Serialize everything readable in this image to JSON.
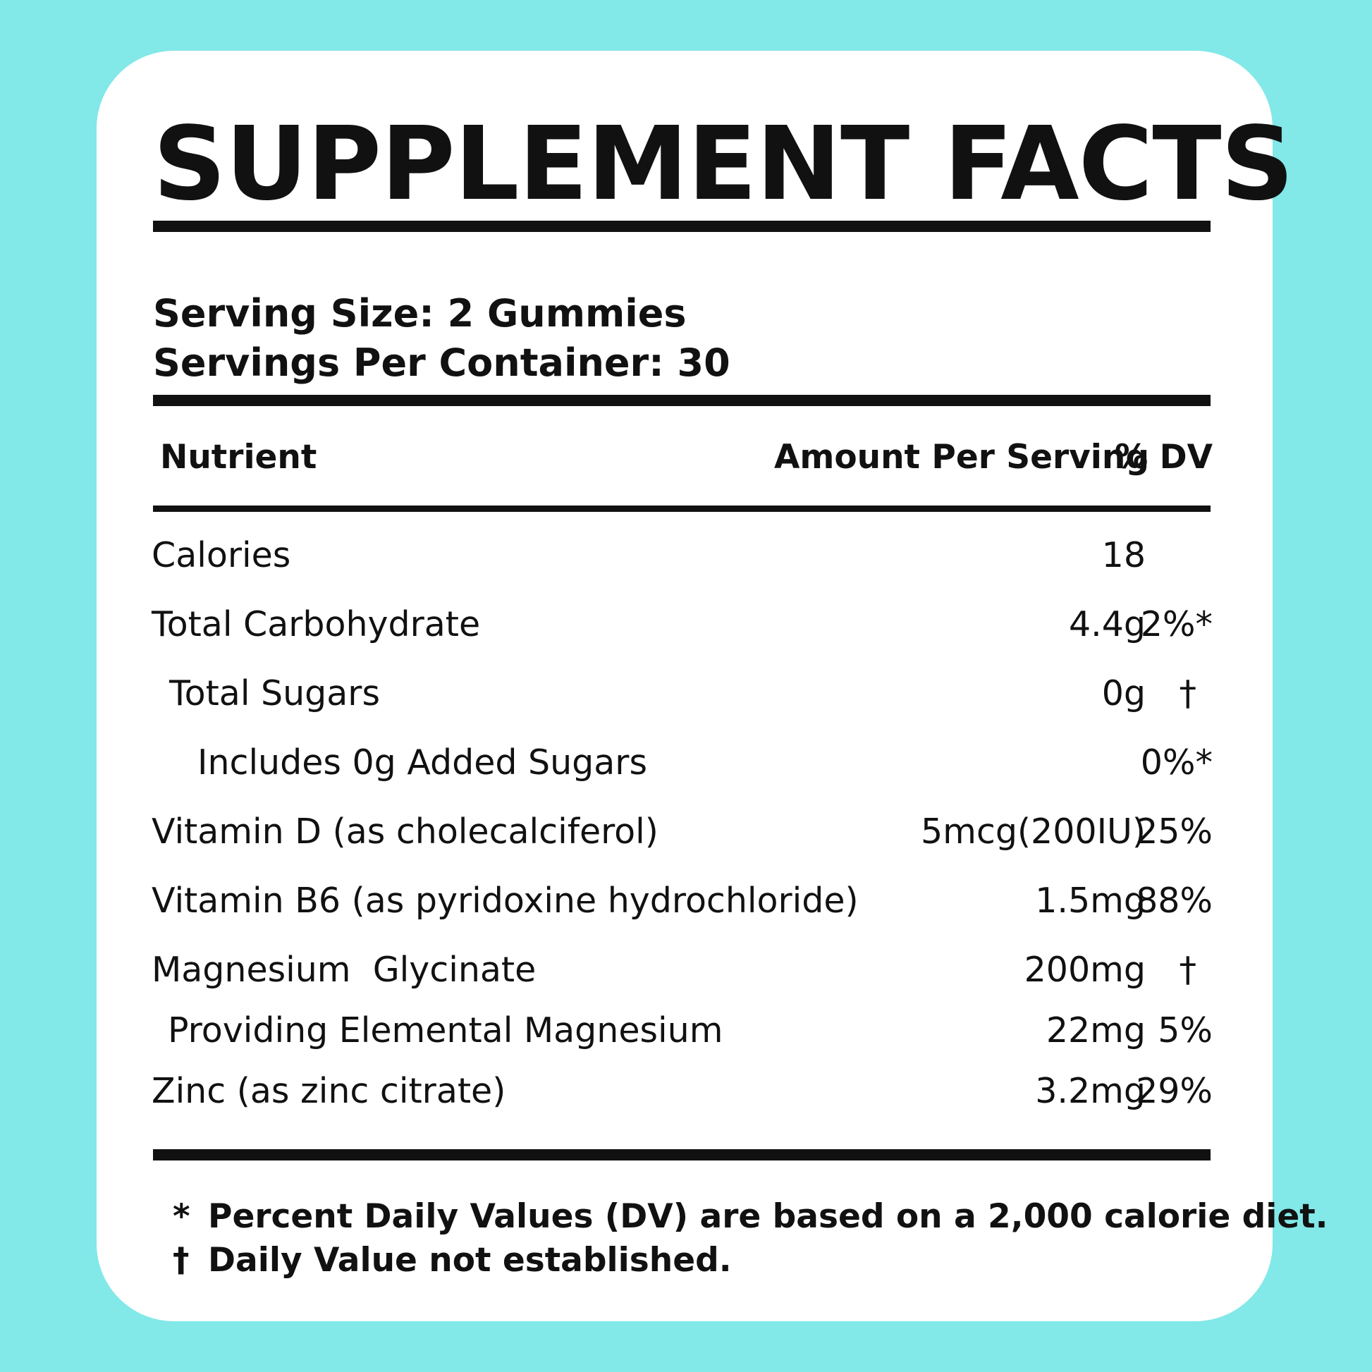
{
  "label": {
    "title": "SUPPLEMENT FACTS",
    "serving_size": "Serving Size: 2 Gummies",
    "servings_per_container": "Servings Per Container: 30",
    "columns": {
      "nutrient": "Nutrient",
      "amount": "Amount Per Serving",
      "dv": "% DV"
    },
    "rows": [
      {
        "name": "Calories",
        "amount": "18",
        "dv": ""
      },
      {
        "name": "Total Carbohydrate",
        "amount": "4.4g",
        "dv": "2%*"
      },
      {
        "name": "Total Sugars",
        "amount": "0g",
        "dv": "†"
      },
      {
        "name": "Includes 0g Added Sugars",
        "amount": "",
        "dv": "0%*"
      },
      {
        "name": "Vitamin D (as cholecalciferol)",
        "amount": "5mcg(200IU)",
        "dv": "25%"
      },
      {
        "name": "Vitamin B6 (as pyridoxine hydrochloride)",
        "amount": "1.5mg",
        "dv": "88%"
      },
      {
        "name": "Magnesium  Glycinate",
        "amount": "200mg",
        "dv": "†"
      },
      {
        "name": "Providing Elemental Magnesium",
        "amount": "22mg",
        "dv": "5%"
      },
      {
        "name": "Zinc (as zinc citrate)",
        "amount": "3.2mg",
        "dv": "29%"
      }
    ],
    "footnotes": [
      {
        "symbol": "*",
        "text": "Percent Daily Values (DV) are based on a 2,000 calorie diet."
      },
      {
        "symbol": "†",
        "text": "Daily Value not established."
      }
    ]
  },
  "colors": {
    "background": "#82e8e8",
    "card": "#ffffff",
    "ink": "#111111"
  }
}
